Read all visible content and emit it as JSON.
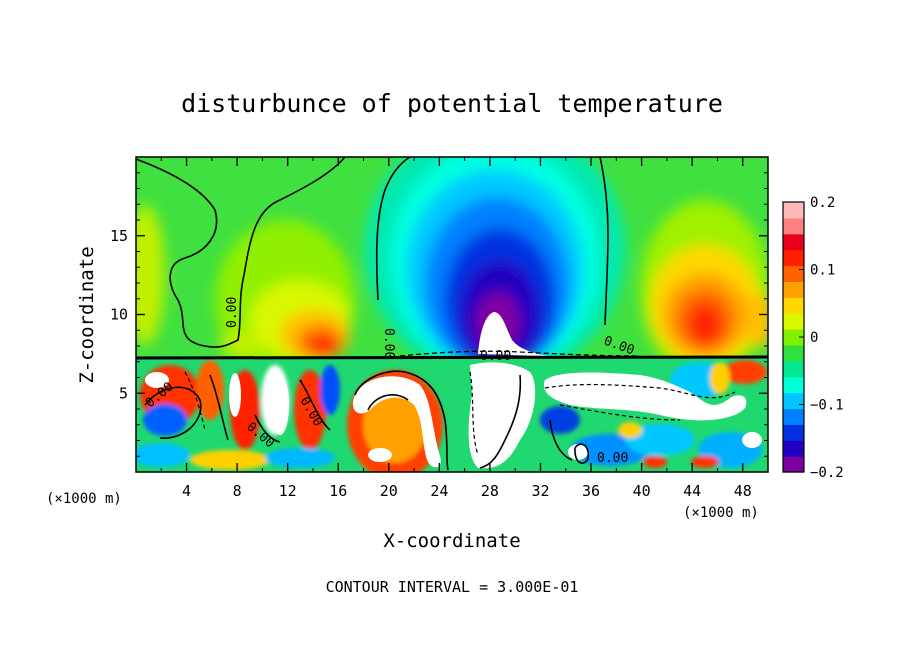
{
  "chart_data": {
    "type": "heatmap",
    "title": "disturbunce of potential temperature",
    "xlabel": "X-coordinate",
    "ylabel": "Z-coordinate",
    "x_unit_left": "(×1000 m)",
    "x_unit_right": "(×1000 m)",
    "xlim": [
      0,
      50
    ],
    "ylim": [
      0,
      20
    ],
    "x_ticks": [
      4,
      8,
      12,
      16,
      20,
      24,
      28,
      32,
      36,
      40,
      44,
      48
    ],
    "x_tick_labels": [
      "4",
      "8",
      "12",
      "16",
      "20",
      "24",
      "28",
      "32",
      "36",
      "40",
      "44",
      "48"
    ],
    "y_ticks": [
      5,
      10,
      15
    ],
    "y_tick_labels": [
      "5",
      "10",
      "15"
    ],
    "colorbar": {
      "range": [
        -0.2,
        0.2
      ],
      "ticks": [
        0.2,
        0.1,
        0,
        -0.1,
        -0.2
      ],
      "tick_labels": [
        "0.2",
        "0.1",
        "0",
        "−0.1",
        "−0.2"
      ],
      "colors": [
        "#7f00a0",
        "#2200c0",
        "#0030e0",
        "#0080ff",
        "#00c8ff",
        "#00ffd8",
        "#00e890",
        "#30e040",
        "#80f000",
        "#d8f800",
        "#ffd800",
        "#ffa000",
        "#ff6000",
        "#ff2000",
        "#e8001a",
        "#ff8080",
        "#ffb8b8"
      ]
    },
    "contour_label": "0.00",
    "footer": "CONTOUR INTERVAL = 3.000E-01",
    "grid": false,
    "legend": "colorbar-right"
  }
}
